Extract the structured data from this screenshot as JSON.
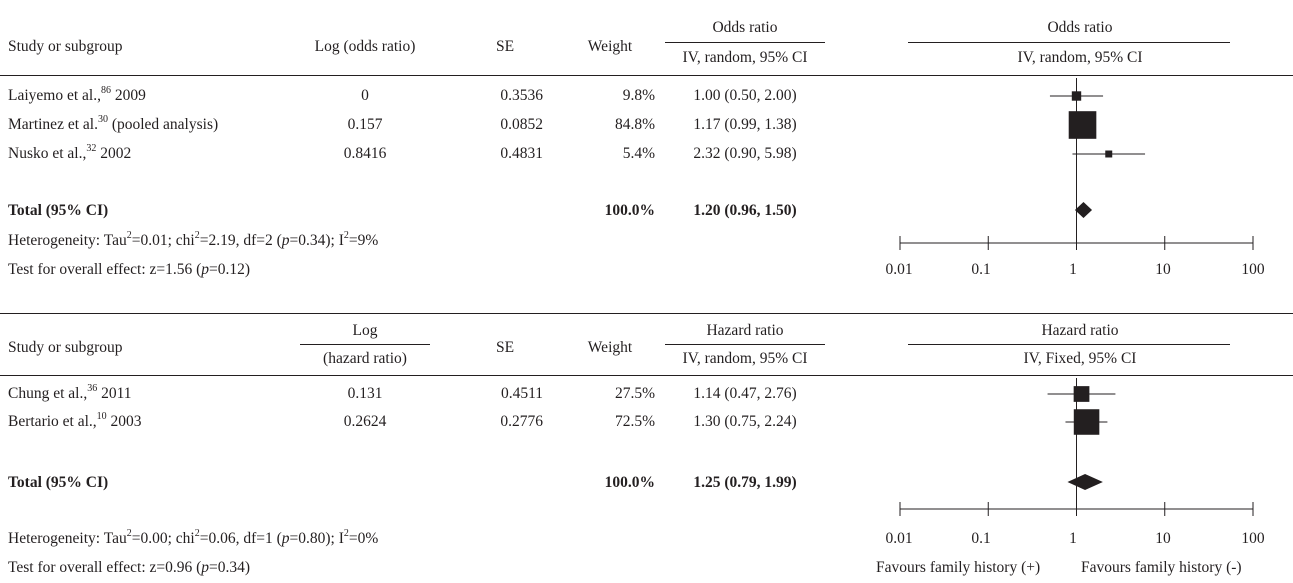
{
  "chart_data": [
    {
      "type": "forest",
      "columns": {
        "study": "Study or subgroup",
        "estimate": "Log (odds ratio)",
        "se": "SE",
        "weight": "Weight",
        "ratio_top": "Odds ratio",
        "ratio_sub": "IV, random, 95% CI",
        "plot_top": "Odds ratio",
        "plot_sub": "IV, random, 95% CI"
      },
      "studies": [
        {
          "name": "Laiyemo et al.,",
          "ref": "86",
          "suffix": " 2009",
          "estimate": "0",
          "se": "0.3536",
          "weight": "9.8%",
          "ci_text": "1.00 (0.50, 2.00)",
          "or": 1.0,
          "lo": 0.5,
          "hi": 2.0,
          "w": 9.8
        },
        {
          "name": "Martinez et al.",
          "ref": "30",
          "suffix": " (pooled analysis)",
          "estimate": "0.157",
          "se": "0.0852",
          "weight": "84.8%",
          "ci_text": "1.17 (0.99, 1.38)",
          "or": 1.17,
          "lo": 0.99,
          "hi": 1.38,
          "w": 84.8
        },
        {
          "name": "Nusko et al.,",
          "ref": "32",
          "suffix": " 2002",
          "estimate": "0.8416",
          "se": "0.4831",
          "weight": "5.4%",
          "ci_text": "2.32 (0.90, 5.98)",
          "or": 2.32,
          "lo": 0.9,
          "hi": 5.98,
          "w": 5.4
        }
      ],
      "total": {
        "label": "Total (95% CI)",
        "weight": "100.0%",
        "ci_text": "1.20 (0.96, 1.50)",
        "or": 1.2,
        "lo": 0.96,
        "hi": 1.5
      },
      "heterogeneity": {
        "a": "Heterogeneity: Tau",
        "b": "=0.01; chi",
        "c": "=2.19, df=2 (",
        "p": "p",
        "d": "=0.34); I",
        "e": "=9%"
      },
      "overall": {
        "a": "Test for overall effect: z=1.56 (",
        "p": "p",
        "b": "=0.12)"
      },
      "x_axis": {
        "scale": "log",
        "ticks": [
          0.01,
          0.1,
          1,
          10,
          100
        ],
        "tick_labels": [
          "0.01",
          "0.1",
          "1",
          "10",
          "100"
        ],
        "xlim": [
          0.01,
          100
        ],
        "reference_line": 1
      }
    },
    {
      "type": "forest",
      "columns": {
        "study": "Study or subgroup",
        "estimate_1": "Log",
        "estimate_2": "(hazard ratio)",
        "se": "SE",
        "weight": "Weight",
        "ratio_top": "Hazard ratio",
        "ratio_sub": "IV, random, 95% CI",
        "plot_top": "Hazard ratio",
        "plot_sub": "IV, Fixed, 95% CI"
      },
      "studies": [
        {
          "name": "Chung et al.,",
          "ref": "36",
          "suffix": " 2011",
          "estimate": "0.131",
          "se": "0.4511",
          "weight": "27.5%",
          "ci_text": "1.14 (0.47, 2.76)",
          "or": 1.14,
          "lo": 0.47,
          "hi": 2.76,
          "w": 27.5
        },
        {
          "name": "Bertario et al.,",
          "ref": "10",
          "suffix": " 2003",
          "estimate": "0.2624",
          "se": "0.2776",
          "weight": "72.5%",
          "ci_text": "1.30 (0.75, 2.24)",
          "or": 1.3,
          "lo": 0.75,
          "hi": 2.24,
          "w": 72.5
        }
      ],
      "total": {
        "label": "Total (95% CI)",
        "weight": "100.0%",
        "ci_text": "1.25 (0.79, 1.99)",
        "or": 1.25,
        "lo": 0.79,
        "hi": 1.99
      },
      "heterogeneity": {
        "a": "Heterogeneity: Tau",
        "b": "=0.00; chi",
        "c": "=0.06, df=1 (",
        "p": "p",
        "d": "=0.80); I",
        "e": "=0%"
      },
      "overall": {
        "a": "Test for overall effect: z=0.96 (",
        "p": "p",
        "b": "=0.34)"
      },
      "x_axis": {
        "scale": "log",
        "ticks": [
          0.01,
          0.1,
          1,
          10,
          100
        ],
        "tick_labels": [
          "0.01",
          "0.1",
          "1",
          "10",
          "100"
        ],
        "xlim": [
          0.01,
          100
        ],
        "reference_line": 1
      },
      "favours": {
        "left": "Favours family history (+)",
        "right": "Favours family history (-)"
      }
    }
  ]
}
